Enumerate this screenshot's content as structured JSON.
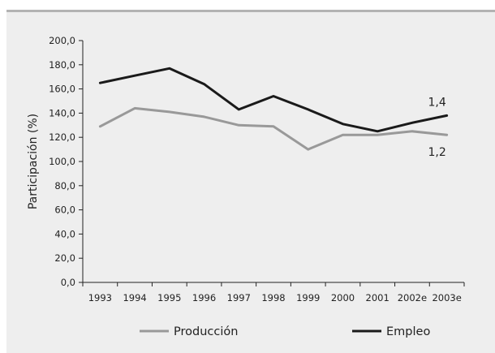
{
  "chart_data": {
    "type": "line",
    "title": "",
    "xlabel": "",
    "ylabel": "Participación (%)",
    "x": [
      "1993",
      "1994",
      "1995",
      "1996",
      "1997",
      "1998",
      "1999",
      "2000",
      "2001",
      "2002e",
      "2003e"
    ],
    "ylim": [
      0,
      200
    ],
    "yticks": [
      "0,0",
      "20,0",
      "40,0",
      "60,0",
      "80,0",
      "100,0",
      "120,0",
      "140,0",
      "160,0",
      "180,0",
      "200,0"
    ],
    "grid": false,
    "legend_position": "bottom",
    "series": [
      {
        "name": "Producción",
        "color": "#999999",
        "values": [
          129,
          144,
          141,
          137,
          130,
          129,
          110,
          122,
          122,
          125,
          122
        ],
        "end_label": "1,2"
      },
      {
        "name": "Empleo",
        "color": "#1a1a1a",
        "values": [
          165,
          171,
          177,
          164,
          143,
          154,
          143,
          131,
          125,
          132,
          138
        ],
        "end_label": "1,4"
      }
    ]
  }
}
